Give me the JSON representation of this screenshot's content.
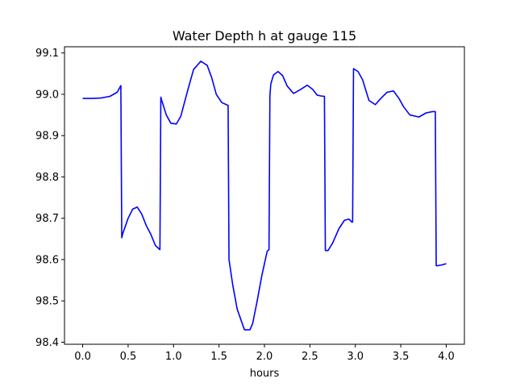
{
  "chart_data": {
    "type": "line",
    "title": "Water Depth h at gauge 115",
    "xlabel": "hours",
    "ylabel": "",
    "xlim": [
      -0.2,
      4.2
    ],
    "ylim": [
      98.395,
      99.115
    ],
    "xticks": [
      0.0,
      0.5,
      1.0,
      1.5,
      2.0,
      2.5,
      3.0,
      3.5,
      4.0
    ],
    "xtick_labels": [
      "0.0",
      "0.5",
      "1.0",
      "1.5",
      "2.0",
      "2.5",
      "3.0",
      "3.5",
      "4.0"
    ],
    "yticks": [
      98.4,
      98.5,
      98.6,
      98.7,
      98.8,
      98.9,
      99.0,
      99.1
    ],
    "ytick_labels": [
      "98.4",
      "98.5",
      "98.6",
      "98.7",
      "98.8",
      "98.9",
      "99.0",
      "99.1"
    ],
    "grid": false,
    "series": [
      {
        "color": "#0000ff",
        "x": [
          0.0,
          0.1,
          0.2,
          0.3,
          0.38,
          0.42,
          0.43,
          0.44,
          0.5,
          0.55,
          0.6,
          0.65,
          0.7,
          0.75,
          0.8,
          0.85,
          0.86,
          0.87,
          0.92,
          0.97,
          1.03,
          1.08,
          1.15,
          1.22,
          1.3,
          1.37,
          1.42,
          1.47,
          1.53,
          1.6,
          1.61,
          1.65,
          1.7,
          1.78,
          1.84,
          1.87,
          1.92,
          1.97,
          2.03,
          2.05,
          2.06,
          2.07,
          2.1,
          2.15,
          2.2,
          2.25,
          2.32,
          2.4,
          2.47,
          2.53,
          2.58,
          2.62,
          2.66,
          2.67,
          2.7,
          2.75,
          2.82,
          2.88,
          2.93,
          2.96,
          2.97,
          2.98,
          3.03,
          3.08,
          3.15,
          3.22,
          3.28,
          3.35,
          3.42,
          3.48,
          3.53,
          3.6,
          3.7,
          3.78,
          3.85,
          3.88,
          3.89,
          3.9,
          3.95,
          4.0
        ],
        "y": [
          98.99,
          98.99,
          98.991,
          98.995,
          99.005,
          99.021,
          98.653,
          98.662,
          98.7,
          98.722,
          98.727,
          98.71,
          98.682,
          98.661,
          98.634,
          98.624,
          98.993,
          98.985,
          98.95,
          98.93,
          98.928,
          98.947,
          99.005,
          99.06,
          99.08,
          99.07,
          99.04,
          99.0,
          98.98,
          98.973,
          98.6,
          98.54,
          98.48,
          98.43,
          98.43,
          98.445,
          98.5,
          98.56,
          98.62,
          98.624,
          98.995,
          99.025,
          99.047,
          99.055,
          99.045,
          99.02,
          99.002,
          99.012,
          99.022,
          99.012,
          98.998,
          98.996,
          98.995,
          98.622,
          98.622,
          98.64,
          98.675,
          98.695,
          98.698,
          98.691,
          98.691,
          99.062,
          99.055,
          99.035,
          98.985,
          98.975,
          98.99,
          99.005,
          99.008,
          98.99,
          98.97,
          98.95,
          98.945,
          98.955,
          98.958,
          98.958,
          98.585,
          98.585,
          98.587,
          98.59
        ]
      }
    ]
  }
}
